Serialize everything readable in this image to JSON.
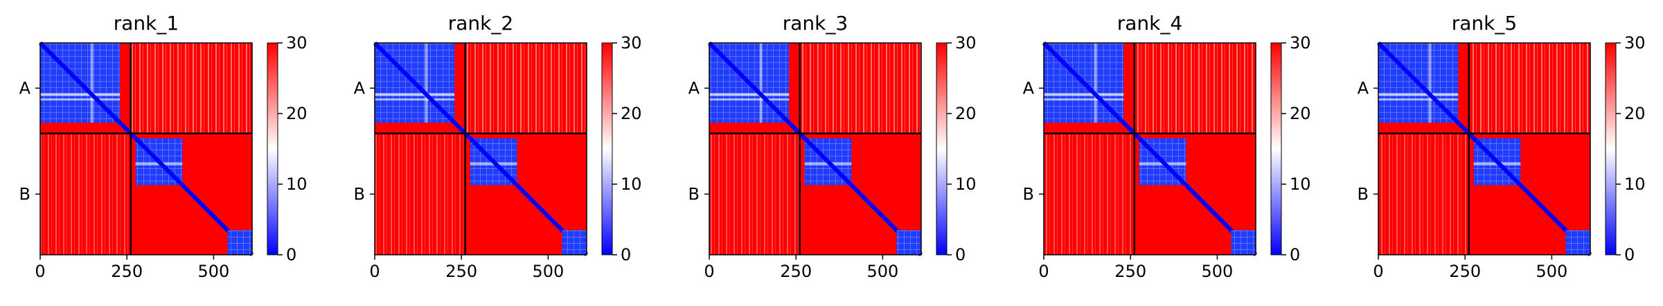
{
  "colors": {
    "near": "#0000ff",
    "mid": "#ffffff",
    "far": "#ff0000",
    "frame": "#000000"
  },
  "chart_data": [
    {
      "type": "heatmap",
      "title": "rank_1",
      "xlabel": "",
      "ylabel": "",
      "xlim": [
        0,
        611
      ],
      "x_ticks": [
        0,
        250,
        500
      ],
      "y_labels": [
        "A",
        "B"
      ],
      "chain_lengths": [
        261,
        350
      ],
      "colorbar": {
        "min": 0,
        "max": 30,
        "ticks": [
          0,
          10,
          20,
          30
        ]
      }
    },
    {
      "type": "heatmap",
      "title": "rank_2",
      "xlabel": "",
      "ylabel": "",
      "xlim": [
        0,
        611
      ],
      "x_ticks": [
        0,
        250,
        500
      ],
      "y_labels": [
        "A",
        "B"
      ],
      "chain_lengths": [
        261,
        350
      ],
      "colorbar": {
        "min": 0,
        "max": 30,
        "ticks": [
          0,
          10,
          20,
          30
        ]
      }
    },
    {
      "type": "heatmap",
      "title": "rank_3",
      "xlabel": "",
      "ylabel": "",
      "xlim": [
        0,
        611
      ],
      "x_ticks": [
        0,
        250,
        500
      ],
      "y_labels": [
        "A",
        "B"
      ],
      "chain_lengths": [
        261,
        350
      ],
      "colorbar": {
        "min": 0,
        "max": 30,
        "ticks": [
          0,
          10,
          20,
          30
        ]
      }
    },
    {
      "type": "heatmap",
      "title": "rank_4",
      "xlabel": "",
      "ylabel": "",
      "xlim": [
        0,
        611
      ],
      "x_ticks": [
        0,
        250,
        500
      ],
      "y_labels": [
        "A",
        "B"
      ],
      "chain_lengths": [
        261,
        350
      ],
      "colorbar": {
        "min": 0,
        "max": 30,
        "ticks": [
          0,
          10,
          20,
          30
        ]
      }
    },
    {
      "type": "heatmap",
      "title": "rank_5",
      "xlabel": "",
      "ylabel": "",
      "xlim": [
        0,
        611
      ],
      "x_ticks": [
        0,
        250,
        500
      ],
      "y_labels": [
        "A",
        "B"
      ],
      "chain_lengths": [
        261,
        350
      ],
      "colorbar": {
        "min": 0,
        "max": 30,
        "ticks": [
          0,
          10,
          20,
          30
        ]
      }
    }
  ]
}
